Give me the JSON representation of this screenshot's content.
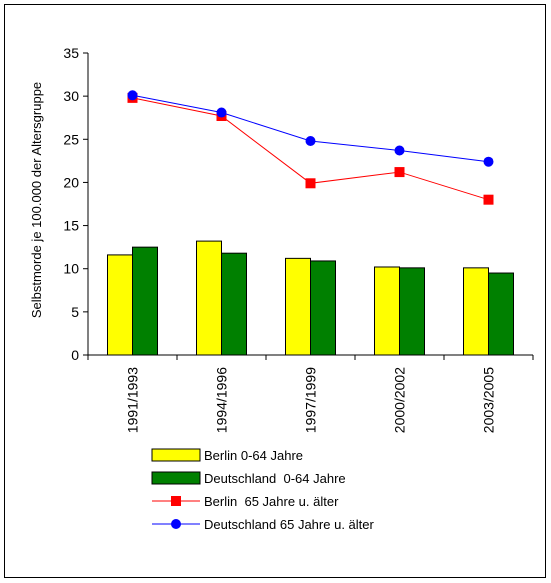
{
  "chart_data": {
    "type": "bar",
    "categories": [
      "1991/1993",
      "1994/1996",
      "1997/1999",
      "2000/2002",
      "2003/2005"
    ],
    "ylabel": "Selbstmorde je 100.000 der Altersgruppe",
    "xlabel": "",
    "ylim": [
      0,
      35
    ],
    "yticks": [
      0,
      5,
      10,
      15,
      20,
      25,
      30,
      35
    ],
    "grid": false,
    "legend_position": "bottom",
    "series": [
      {
        "name": "Berlin 0-64 Jahre",
        "kind": "bar",
        "color": "#ffff00",
        "values": [
          11.6,
          13.2,
          11.2,
          10.2,
          10.1
        ]
      },
      {
        "name": "Deutschland  0-64 Jahre",
        "kind": "bar",
        "color": "#008000",
        "values": [
          12.5,
          11.8,
          10.9,
          10.1,
          9.5
        ]
      },
      {
        "name": "Berlin  65 Jahre u. älter",
        "kind": "line",
        "marker": "square",
        "color": "#ff0000",
        "values": [
          29.8,
          27.7,
          19.9,
          21.2,
          18.0
        ]
      },
      {
        "name": "Deutschland 65 Jahre u. älter",
        "kind": "line",
        "marker": "circle",
        "color": "#0000ff",
        "values": [
          30.1,
          28.1,
          24.8,
          23.7,
          22.4
        ]
      }
    ]
  }
}
